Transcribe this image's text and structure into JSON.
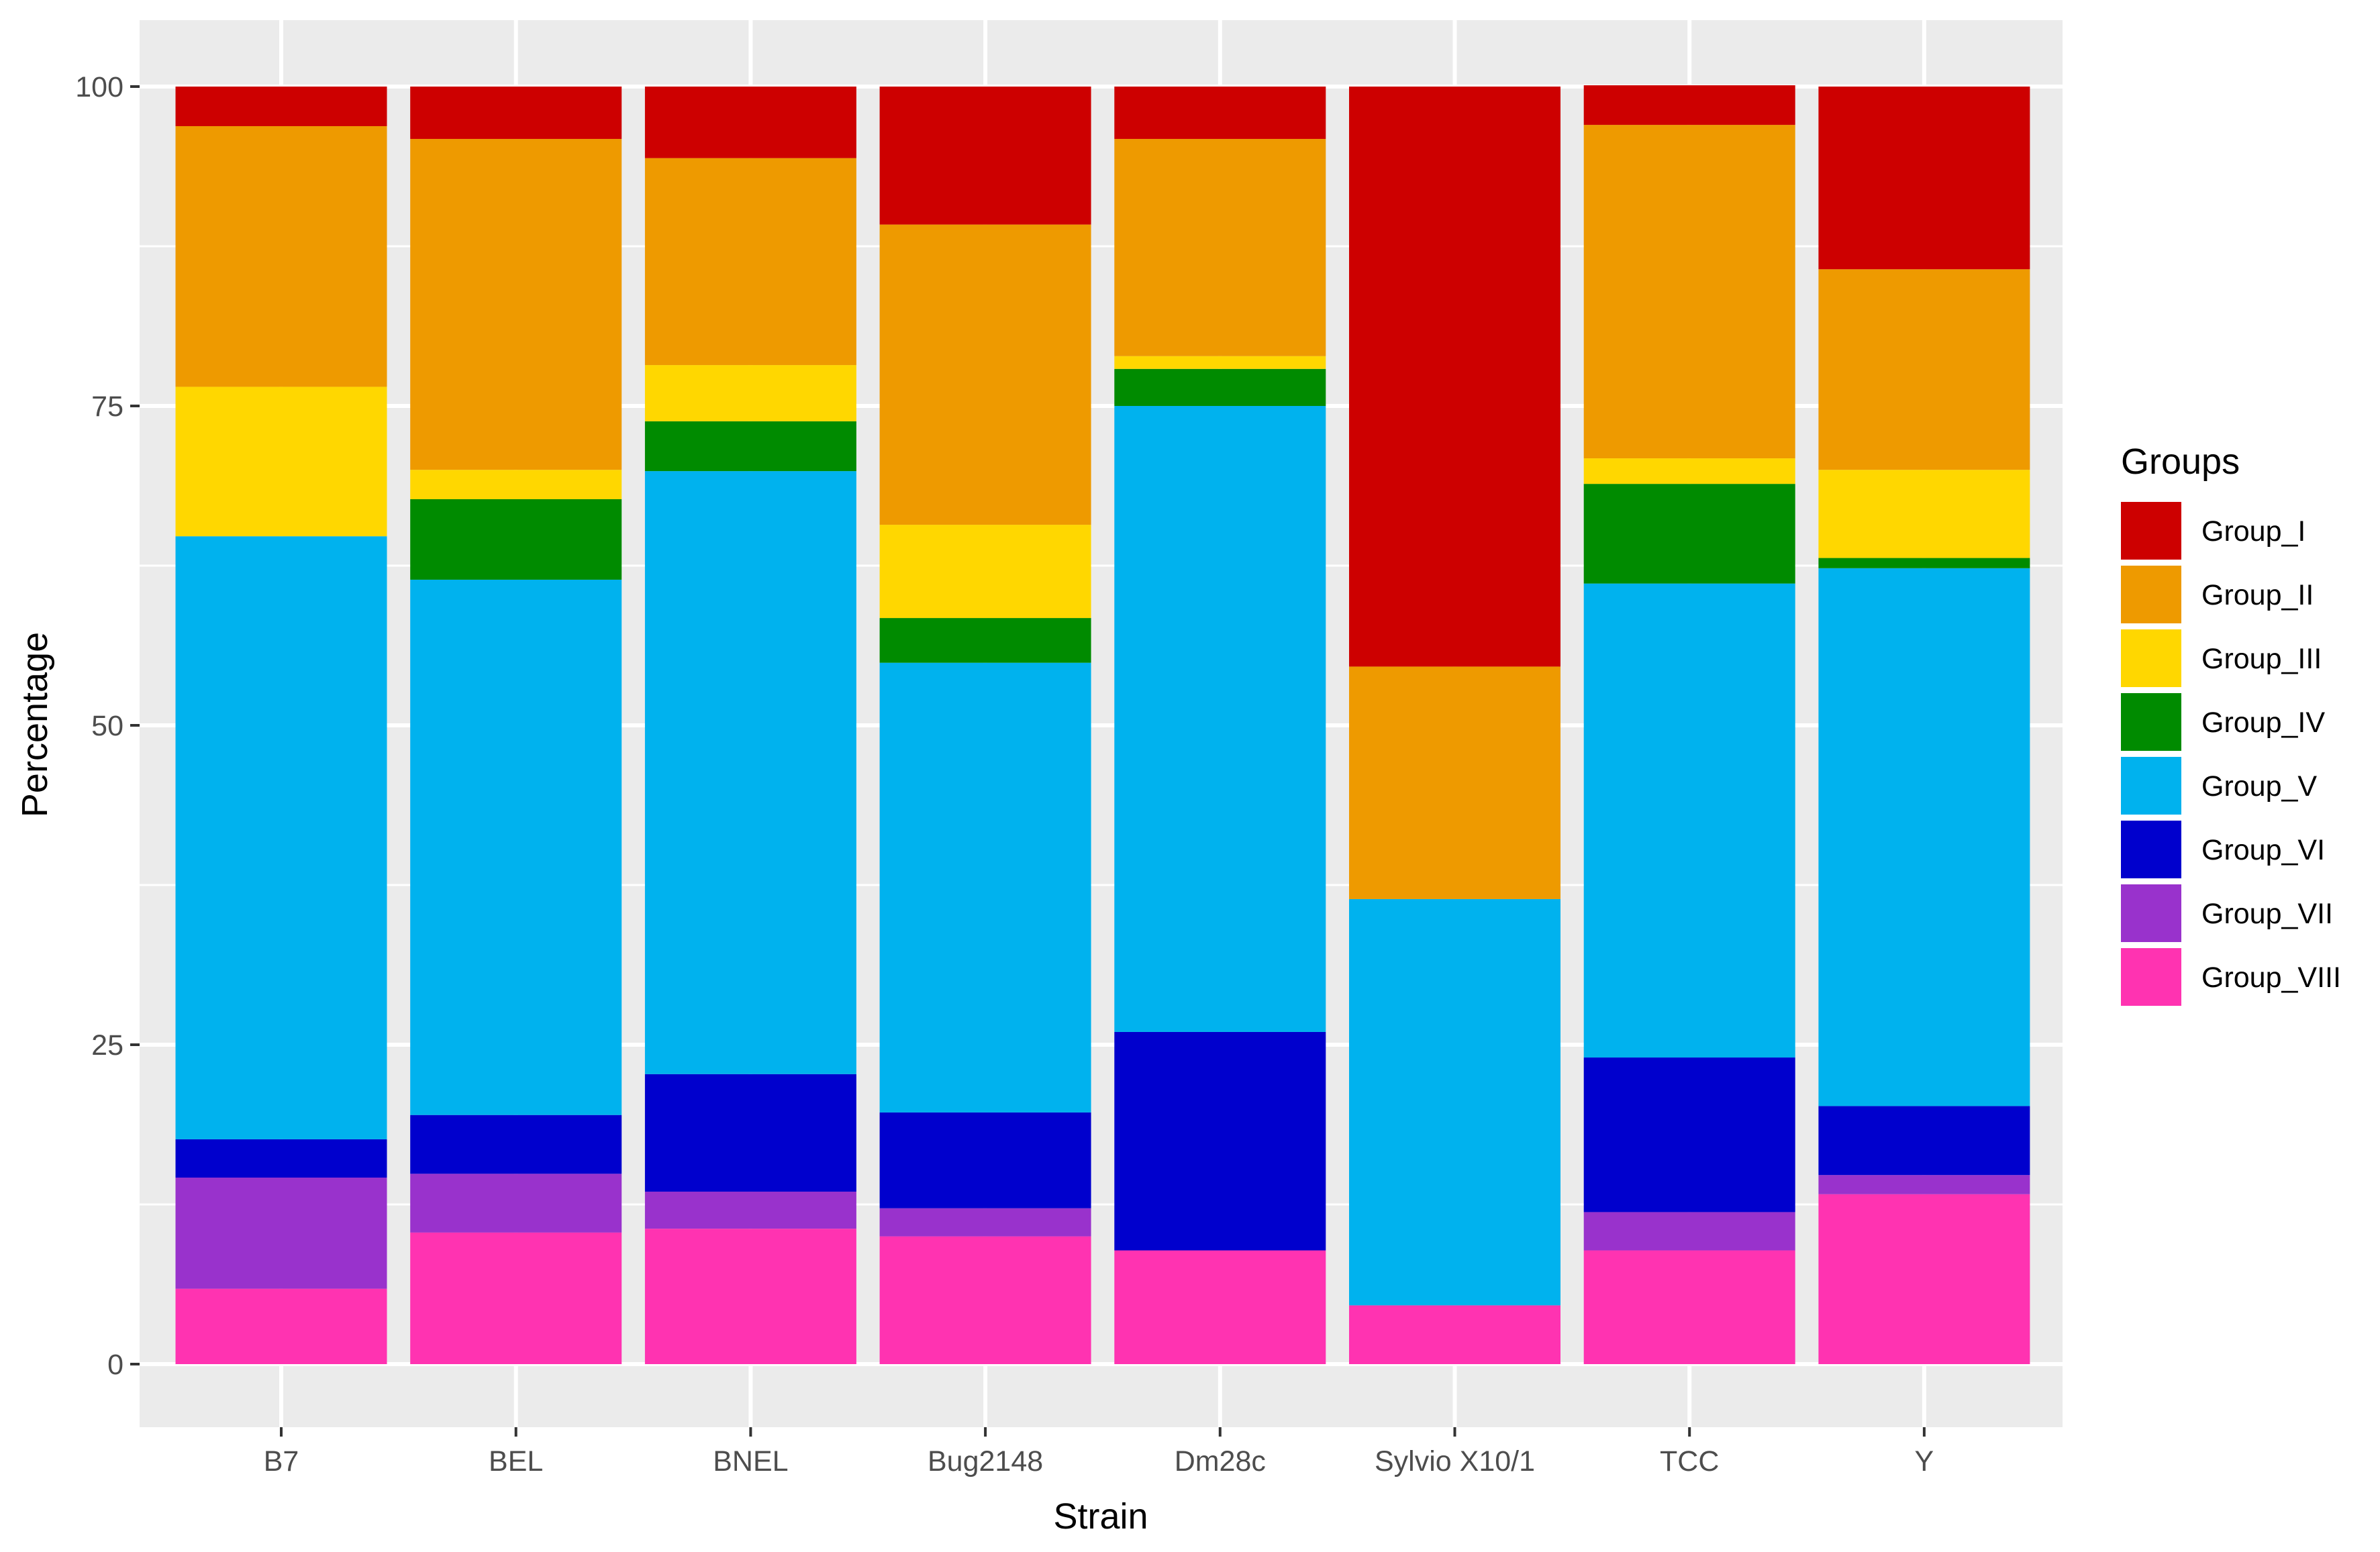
{
  "chart_data": {
    "type": "bar",
    "stacked": true,
    "xlabel": "Strain",
    "ylabel": "Percentage",
    "ylim": [
      0,
      100
    ],
    "y_ticks": [
      0,
      25,
      50,
      75,
      100
    ],
    "grid": true,
    "legend_position": "right",
    "legend_title": "Groups",
    "categories": [
      "B7",
      "BEL",
      "BNEL",
      "Bug2148",
      "Dm28c",
      "Sylvio X10/1",
      "TCC",
      "Y"
    ],
    "series": [
      {
        "name": "Group_VIII",
        "color": "#FF33B1",
        "values": [
          5.9,
          10.3,
          10.6,
          10.0,
          8.9,
          4.6,
          8.9,
          13.3
        ]
      },
      {
        "name": "Group_VII",
        "color": "#9932CC",
        "values": [
          8.7,
          4.6,
          2.9,
          2.2,
          0.0,
          0.0,
          3.0,
          1.5
        ]
      },
      {
        "name": "Group_VI",
        "color": "#0000CD",
        "values": [
          3.0,
          4.6,
          9.2,
          7.5,
          17.1,
          0.0,
          12.1,
          5.4
        ]
      },
      {
        "name": "Group_V",
        "color": "#00B2EE",
        "values": [
          47.2,
          41.9,
          47.2,
          35.2,
          49.0,
          31.8,
          37.1,
          42.1
        ]
      },
      {
        "name": "Group_IV",
        "color": "#008B00",
        "values": [
          0.0,
          6.3,
          3.9,
          3.5,
          2.9,
          0.0,
          7.8,
          0.8
        ]
      },
      {
        "name": "Group_III",
        "color": "#FFD700",
        "values": [
          11.7,
          2.3,
          4.4,
          7.3,
          1.0,
          0.0,
          2.0,
          6.9
        ]
      },
      {
        "name": "Group_II",
        "color": "#EE9A00",
        "values": [
          20.4,
          25.9,
          16.2,
          23.5,
          17.0,
          18.2,
          26.1,
          15.7
        ]
      },
      {
        "name": "Group_I",
        "color": "#CD0000",
        "values": [
          3.1,
          4.1,
          5.6,
          10.8,
          4.1,
          45.4,
          3.1,
          14.3
        ]
      }
    ],
    "legend_order": [
      "Group_I",
      "Group_II",
      "Group_III",
      "Group_IV",
      "Group_V",
      "Group_VI",
      "Group_VII",
      "Group_VIII"
    ]
  },
  "style": {
    "panel_background": "#EBEBEB",
    "grid_color": "#FFFFFF"
  }
}
